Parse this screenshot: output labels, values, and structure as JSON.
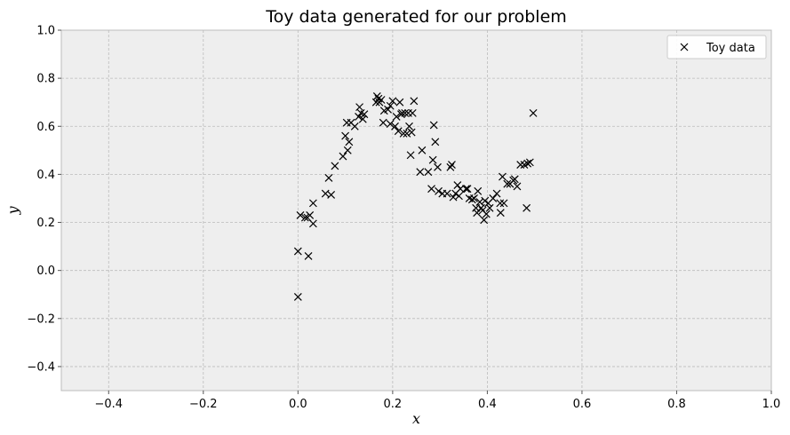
{
  "chart_data": {
    "type": "scatter",
    "title": "Toy data generated for our problem",
    "xlabel": "x",
    "ylabel": "y",
    "xlim": [
      -0.5,
      1.0
    ],
    "ylim": [
      -0.5,
      1.0
    ],
    "xticks": [
      -0.4,
      -0.2,
      0.0,
      0.2,
      0.4,
      0.6,
      0.8,
      1.0
    ],
    "xtick_labels": [
      "−0.4",
      "−0.2",
      "0.0",
      "0.2",
      "0.4",
      "0.6",
      "0.8",
      "1.0"
    ],
    "yticks": [
      -0.4,
      -0.2,
      0.0,
      0.2,
      0.4,
      0.6,
      0.8,
      1.0
    ],
    "ytick_labels": [
      "−0.4",
      "−0.2",
      "0.0",
      "0.2",
      "0.4",
      "0.6",
      "0.8",
      "1.0"
    ],
    "grid": true,
    "legend_position": "top-right",
    "marker": "x",
    "colors": {
      "marker": "#000000",
      "plot_background": "#eeeeee",
      "grid": "#bcbcbc"
    },
    "series": [
      {
        "name": "Toy data",
        "points": [
          [
            0.0,
            0.08
          ],
          [
            0.0,
            -0.11
          ],
          [
            0.005,
            0.23
          ],
          [
            0.015,
            0.22
          ],
          [
            0.02,
            0.22
          ],
          [
            0.025,
            0.23
          ],
          [
            0.022,
            0.06
          ],
          [
            0.032,
            0.195
          ],
          [
            0.032,
            0.28
          ],
          [
            0.058,
            0.32
          ],
          [
            0.065,
            0.385
          ],
          [
            0.07,
            0.315
          ],
          [
            0.078,
            0.435
          ],
          [
            0.095,
            0.475
          ],
          [
            0.1,
            0.56
          ],
          [
            0.103,
            0.615
          ],
          [
            0.105,
            0.5
          ],
          [
            0.108,
            0.535
          ],
          [
            0.112,
            0.615
          ],
          [
            0.12,
            0.6
          ],
          [
            0.128,
            0.64
          ],
          [
            0.13,
            0.68
          ],
          [
            0.133,
            0.655
          ],
          [
            0.137,
            0.63
          ],
          [
            0.14,
            0.65
          ],
          [
            0.165,
            0.7
          ],
          [
            0.167,
            0.725
          ],
          [
            0.17,
            0.715
          ],
          [
            0.172,
            0.7
          ],
          [
            0.176,
            0.71
          ],
          [
            0.18,
            0.615
          ],
          [
            0.182,
            0.665
          ],
          [
            0.19,
            0.67
          ],
          [
            0.195,
            0.685
          ],
          [
            0.195,
            0.61
          ],
          [
            0.2,
            0.705
          ],
          [
            0.205,
            0.6
          ],
          [
            0.208,
            0.64
          ],
          [
            0.212,
            0.58
          ],
          [
            0.215,
            0.7
          ],
          [
            0.218,
            0.65
          ],
          [
            0.22,
            0.655
          ],
          [
            0.223,
            0.57
          ],
          [
            0.226,
            0.655
          ],
          [
            0.23,
            0.57
          ],
          [
            0.233,
            0.655
          ],
          [
            0.235,
            0.6
          ],
          [
            0.238,
            0.48
          ],
          [
            0.24,
            0.575
          ],
          [
            0.242,
            0.655
          ],
          [
            0.245,
            0.705
          ],
          [
            0.258,
            0.41
          ],
          [
            0.262,
            0.5
          ],
          [
            0.275,
            0.41
          ],
          [
            0.282,
            0.34
          ],
          [
            0.285,
            0.46
          ],
          [
            0.287,
            0.605
          ],
          [
            0.29,
            0.535
          ],
          [
            0.295,
            0.43
          ],
          [
            0.297,
            0.33
          ],
          [
            0.305,
            0.32
          ],
          [
            0.315,
            0.32
          ],
          [
            0.322,
            0.43
          ],
          [
            0.325,
            0.44
          ],
          [
            0.328,
            0.305
          ],
          [
            0.333,
            0.32
          ],
          [
            0.337,
            0.355
          ],
          [
            0.34,
            0.31
          ],
          [
            0.343,
            0.34
          ],
          [
            0.355,
            0.34
          ],
          [
            0.358,
            0.34
          ],
          [
            0.362,
            0.3
          ],
          [
            0.368,
            0.295
          ],
          [
            0.372,
            0.3
          ],
          [
            0.376,
            0.26
          ],
          [
            0.378,
            0.24
          ],
          [
            0.38,
            0.33
          ],
          [
            0.384,
            0.285
          ],
          [
            0.387,
            0.26
          ],
          [
            0.39,
            0.25
          ],
          [
            0.393,
            0.21
          ],
          [
            0.395,
            0.29
          ],
          [
            0.398,
            0.235
          ],
          [
            0.402,
            0.28
          ],
          [
            0.405,
            0.26
          ],
          [
            0.412,
            0.3
          ],
          [
            0.42,
            0.32
          ],
          [
            0.427,
            0.28
          ],
          [
            0.428,
            0.24
          ],
          [
            0.432,
            0.39
          ],
          [
            0.435,
            0.28
          ],
          [
            0.442,
            0.36
          ],
          [
            0.448,
            0.36
          ],
          [
            0.455,
            0.375
          ],
          [
            0.458,
            0.38
          ],
          [
            0.463,
            0.35
          ],
          [
            0.47,
            0.44
          ],
          [
            0.478,
            0.44
          ],
          [
            0.483,
            0.26
          ],
          [
            0.485,
            0.445
          ],
          [
            0.49,
            0.45
          ],
          [
            0.497,
            0.655
          ]
        ]
      }
    ]
  }
}
